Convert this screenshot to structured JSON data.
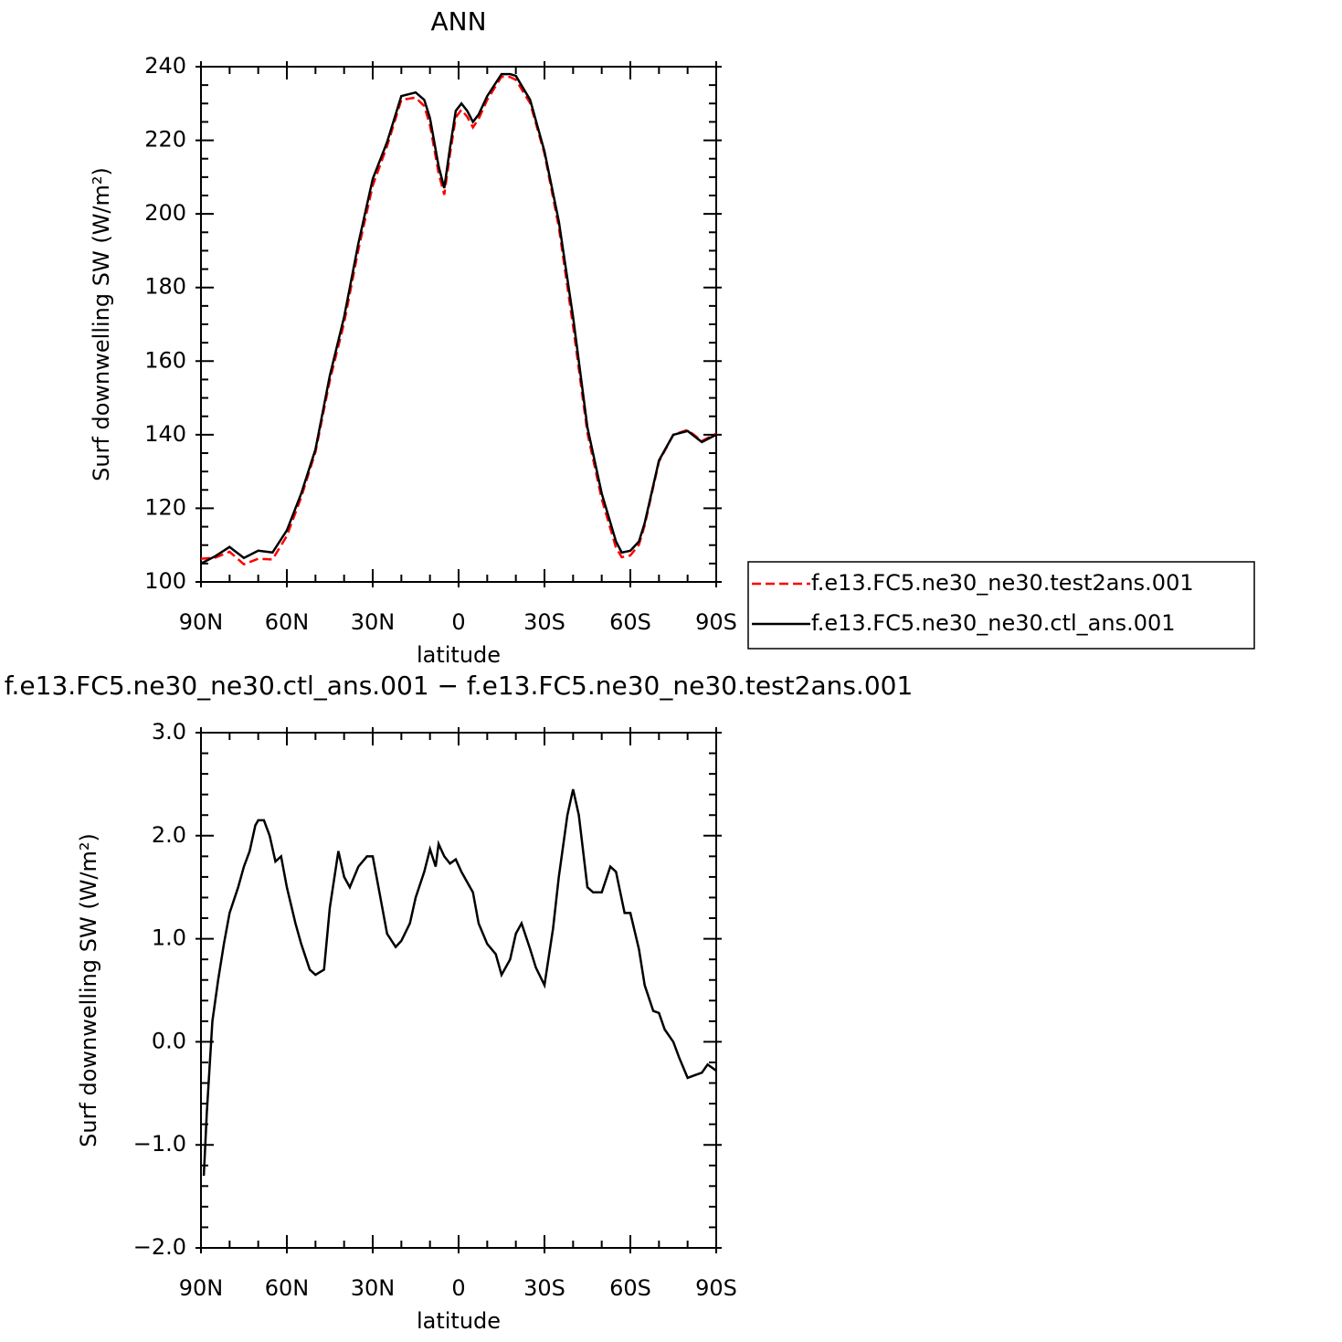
{
  "chart_data": [
    {
      "type": "line",
      "title": "ANN",
      "xlabel": "latitude",
      "ylabel": "Surf downwelling SW (W/m²)",
      "xlim": [
        90,
        -90
      ],
      "xticks": [
        {
          "value": 90,
          "label": "90N"
        },
        {
          "value": 60,
          "label": "60N"
        },
        {
          "value": 30,
          "label": "30N"
        },
        0,
        {
          "value": -30,
          "label": "30S"
        },
        {
          "value": -60,
          "label": "60S"
        },
        {
          "value": -90,
          "label": "90S"
        }
      ],
      "ylim": [
        100,
        240
      ],
      "yticks": [
        100,
        120,
        140,
        160,
        180,
        200,
        220,
        240
      ],
      "legend": "right",
      "x": [
        90,
        85,
        80,
        75,
        70,
        65,
        60,
        55,
        50,
        45,
        40,
        35,
        30,
        25,
        20,
        15,
        12,
        10,
        7,
        5,
        3,
        1,
        -1,
        -3,
        -5,
        -7,
        -10,
        -15,
        -18,
        -20,
        -25,
        -30,
        -35,
        -40,
        -45,
        -50,
        -55,
        -57,
        -60,
        -63,
        -65,
        -70,
        -75,
        -80,
        -85,
        -90
      ],
      "series": [
        {
          "name": "f.e13.FC5.ne30_ne30.test2ans.001",
          "color": "#ff0000",
          "style": "dashed",
          "values": [
            106.3,
            106.6,
            108.2,
            104.8,
            106.3,
            106.1,
            112.5,
            123,
            135.3,
            154.7,
            170.4,
            190.3,
            207.7,
            218.4,
            231,
            231.6,
            229.3,
            224.1,
            211.1,
            205.2,
            216.3,
            226.2,
            228.3,
            226.4,
            223.5,
            225.8,
            231,
            237.3,
            237.2,
            236.4,
            230.1,
            216.4,
            196.4,
            169.5,
            140.5,
            122.5,
            109.3,
            106.7,
            107.2,
            110.1,
            115.4,
            132.7,
            140,
            141.3,
            138.3,
            140.3
          ]
        },
        {
          "name": "f.e13.FC5.ne30_ne30.ctl_ans.001",
          "color": "#000000",
          "style": "solid",
          "values": [
            105,
            107,
            109.5,
            106.5,
            108.5,
            108,
            114,
            124,
            136,
            156,
            172,
            192,
            209.5,
            219.5,
            232,
            233,
            231,
            226,
            213,
            207,
            218,
            228,
            230,
            228,
            225,
            227,
            232,
            238,
            238,
            237.5,
            231,
            217,
            198,
            172,
            142,
            124,
            111,
            108,
            108.5,
            111,
            116,
            133,
            140,
            141,
            138,
            140
          ]
        }
      ]
    },
    {
      "type": "line",
      "title": "f.e13.FC5.ne30_ne30.ctl_ans.001 − f.e13.FC5.ne30_ne30.test2ans.001",
      "xlabel": "latitude",
      "ylabel": "Surf downwelling SW (W/m²)",
      "xlim": [
        90,
        -90
      ],
      "xticks": [
        {
          "value": 90,
          "label": "90N"
        },
        {
          "value": 60,
          "label": "60N"
        },
        {
          "value": 30,
          "label": "30N"
        },
        0,
        {
          "value": -30,
          "label": "30S"
        },
        {
          "value": -60,
          "label": "60S"
        },
        {
          "value": -90,
          "label": "90S"
        }
      ],
      "ylim": [
        -2,
        3
      ],
      "yticks": [
        {
          "value": -2,
          "label": "−2.0"
        },
        {
          "value": -1,
          "label": "−1.0"
        },
        {
          "value": 0,
          "label": "0.0"
        },
        {
          "value": 1,
          "label": "1.0"
        },
        {
          "value": 2,
          "label": "2.0"
        },
        {
          "value": 3,
          "label": "3.0"
        }
      ],
      "x": [
        89,
        88,
        86,
        84,
        82,
        80,
        77,
        75,
        73,
        71,
        70,
        68,
        66,
        64,
        62,
        60,
        57,
        55,
        52,
        50,
        47,
        45,
        42,
        40,
        38,
        35,
        32,
        30,
        28,
        25,
        22,
        20,
        17,
        15,
        12,
        10,
        8,
        7,
        5,
        3,
        1,
        -1,
        -3,
        -5,
        -7,
        -10,
        -13,
        -15,
        -18,
        -20,
        -22,
        -25,
        -27,
        -30,
        -33,
        -35,
        -38,
        -40,
        -42,
        -45,
        -47,
        -50,
        -53,
        -55,
        -58,
        -60,
        -63,
        -65,
        -68,
        -70,
        -72,
        -75,
        -77,
        -80,
        -82,
        -85,
        -87,
        -90
      ],
      "series": [
        {
          "color": "#000000",
          "style": "solid",
          "values": [
            -1.3,
            -0.7,
            0.2,
            0.6,
            0.95,
            1.25,
            1.5,
            1.7,
            1.85,
            2.1,
            2.15,
            2.15,
            2.0,
            1.75,
            1.8,
            1.5,
            1.15,
            0.95,
            0.7,
            0.65,
            0.7,
            1.3,
            1.85,
            1.6,
            1.5,
            1.7,
            1.8,
            1.8,
            1.5,
            1.05,
            0.92,
            0.98,
            1.15,
            1.4,
            1.65,
            1.87,
            1.7,
            1.92,
            1.8,
            1.73,
            1.77,
            1.65,
            1.55,
            1.45,
            1.15,
            0.95,
            0.85,
            0.65,
            0.8,
            1.05,
            1.15,
            0.9,
            0.72,
            0.55,
            1.1,
            1.6,
            2.2,
            2.45,
            2.2,
            1.5,
            1.45,
            1.45,
            1.7,
            1.65,
            1.25,
            1.25,
            0.9,
            0.55,
            0.3,
            0.28,
            0.12,
            0.0,
            -0.15,
            -0.35,
            -0.33,
            -0.3,
            -0.22,
            -0.28
          ]
        }
      ]
    }
  ]
}
